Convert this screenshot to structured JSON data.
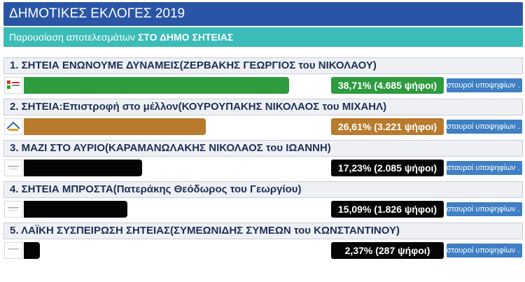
{
  "header": {
    "title": "ΔΗΜΟΤΙΚΕΣ ΕΚΛΟΓΕΣ 2019",
    "subtitle_prefix": "Παρουσίαση αποτελεσμάτων",
    "subtitle_bold": "ΣΤΟ ΔΗΜΟ ΣΗΤΕΙΑΣ"
  },
  "candidate_button_label": "σταυροί υποψηφίων . . .",
  "parties": [
    {
      "heading": "1. ΣΗΤΕΙΑ ΕΝΩΝΟΥΜΕ ΔΥΝΑΜΕΙΣ(ΖΕΡΒΑΚΗΣ ΓΕΩΡΓΙΟΣ του ΝΙΚΟΛΑΟΥ)",
      "share": 38.71,
      "result": "38,71% (4.685 ψήφοι)",
      "color": "#2e9b3f",
      "logo": "logo-1"
    },
    {
      "heading": "2. ΣΗΤΕΙΑ:Επιστροφή στο μέλλον(ΚΟΥΡΟΥΠΑΚΗΣ ΝΙΚΟΛΑΟΣ του ΜΙΧΑΗΛ)",
      "share": 26.61,
      "result": "26,61% (3.221 ψήφοι)",
      "color": "#b87a2c",
      "logo": "logo-2"
    },
    {
      "heading": "3. ΜΑΖΙ ΣΤΟ ΑΥΡΙΟ(ΚΑΡΑΜΑΝΩΛΑΚΗΣ ΝΙΚΟΛΑΟΣ του ΙΩΑΝΝΗ)",
      "share": 17.23,
      "result": "17,23% (2.085 ψήφοι)",
      "color": "#050505",
      "logo": "logo-3"
    },
    {
      "heading": "4. ΣΗΤΕΙΑ ΜΠΡΟΣΤΑ(Πατεράκης Θεόδωρος του Γεωργίου)",
      "share": 15.09,
      "result": "15,09% (1.826 ψήφοι)",
      "color": "#050505",
      "logo": "logo-4"
    },
    {
      "heading": "5. ΛΑΪΚΗ ΣΥΣΠΕΙΡΩΣΗ ΣΗΤΕΙΑΣ(ΣΥΜΕΩΝΙΔΗΣ ΣΥΜΕΩΝ του ΚΩΝΣΤΑΝΤΙΝΟΥ)",
      "share": 2.37,
      "result": "2,37% (287 ψήφοι)",
      "color": "#050505",
      "logo": "logo-5"
    }
  ]
}
